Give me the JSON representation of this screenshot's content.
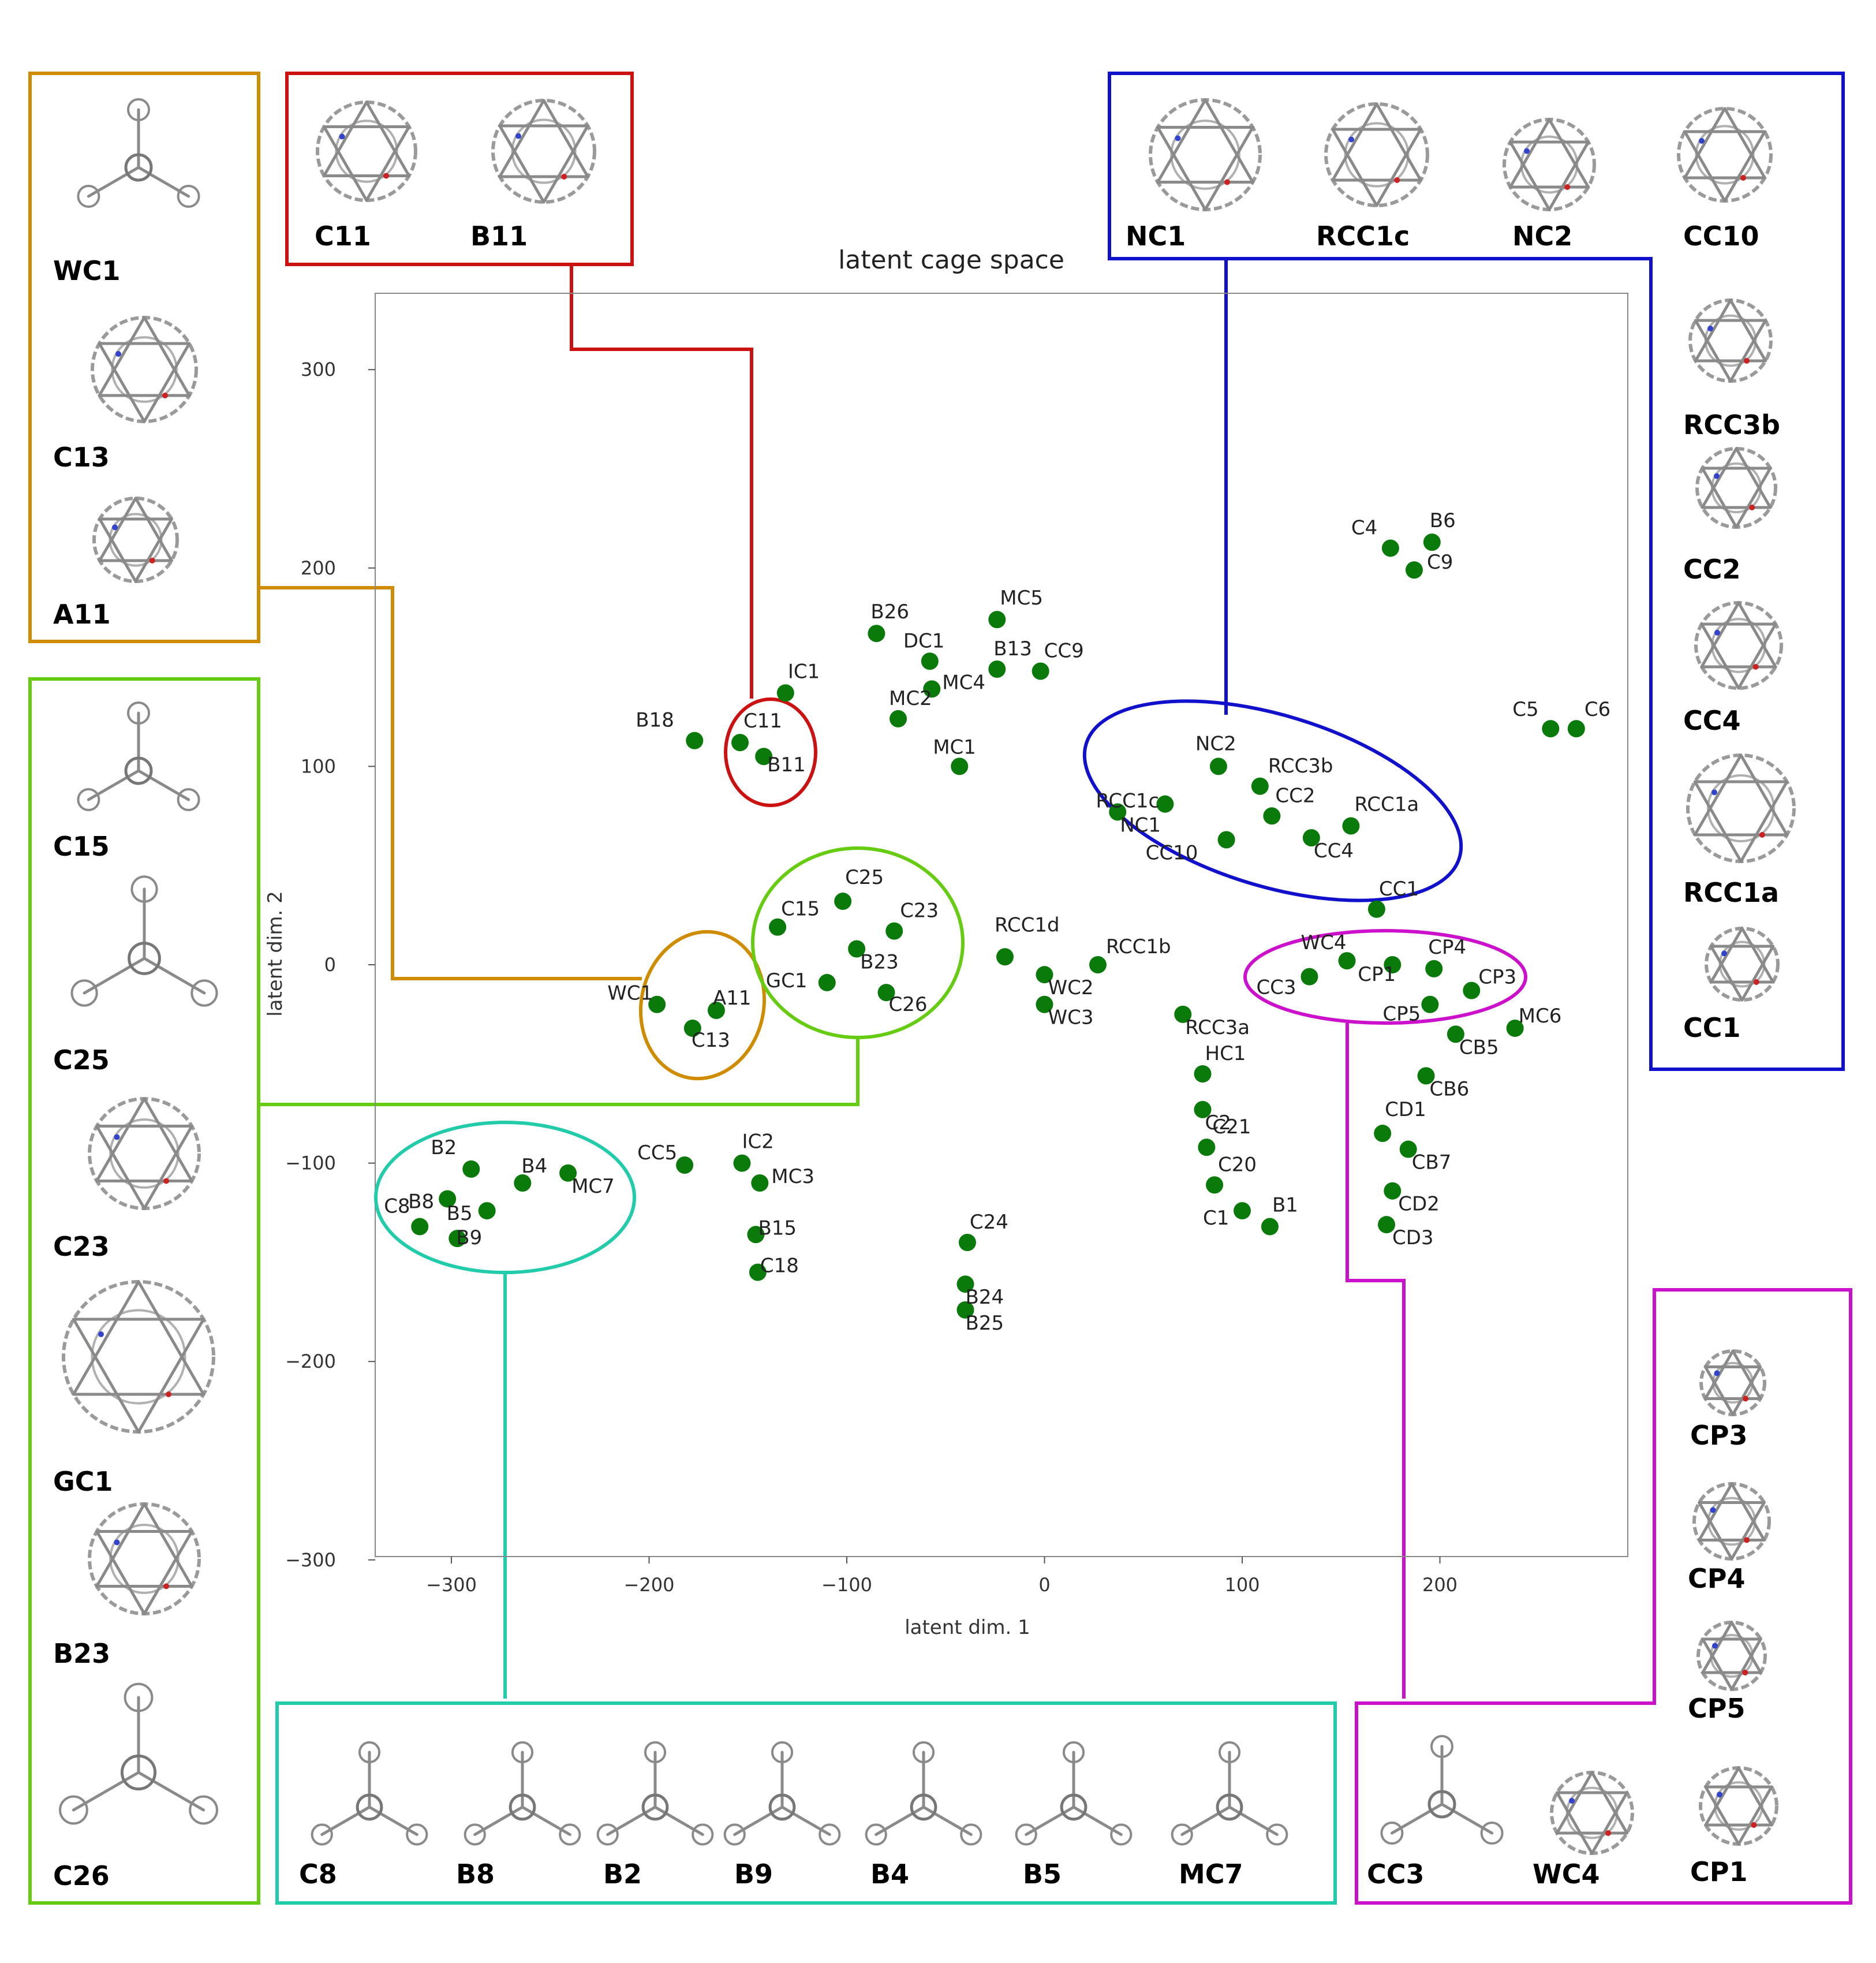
{
  "chart_data": {
    "type": "scatter",
    "title": "latent cage space",
    "xlabel": "latent dim. 1",
    "ylabel": "latent dim. 2",
    "xlim": [
      -342,
      292
    ],
    "ylim": [
      -300,
      337
    ],
    "xticks": [
      -300,
      -200,
      -100,
      0,
      100,
      200
    ],
    "yticks": [
      -300,
      -200,
      -100,
      0,
      100,
      200,
      300
    ],
    "xtick_labels": [
      "−300",
      "−200",
      "−100",
      "0",
      "100",
      "200"
    ],
    "ytick_labels": [
      "−300",
      "−200",
      "−100",
      "0",
      "100",
      "200",
      "300"
    ],
    "marker_color": "#0a7a0a",
    "points": [
      {
        "label": "C4",
        "x": 175,
        "y": 210
      },
      {
        "label": "B6",
        "x": 196,
        "y": 213
      },
      {
        "label": "C9",
        "x": 187,
        "y": 199
      },
      {
        "label": "C5",
        "x": 256,
        "y": 119
      },
      {
        "label": "C6",
        "x": 269,
        "y": 119
      },
      {
        "label": "MC5",
        "x": -24,
        "y": 174
      },
      {
        "label": "B26",
        "x": -85,
        "y": 167
      },
      {
        "label": "DC1",
        "x": -58,
        "y": 153
      },
      {
        "label": "B13",
        "x": -24,
        "y": 149
      },
      {
        "label": "CC9",
        "x": -2,
        "y": 148
      },
      {
        "label": "MC4",
        "x": -57,
        "y": 139
      },
      {
        "label": "MC2",
        "x": -74,
        "y": 124
      },
      {
        "label": "MC1",
        "x": -43,
        "y": 100
      },
      {
        "label": "IC1",
        "x": -131,
        "y": 137
      },
      {
        "label": "B18",
        "x": -177,
        "y": 113
      },
      {
        "label": "C11",
        "x": -154,
        "y": 112
      },
      {
        "label": "B11",
        "x": -142,
        "y": 105
      },
      {
        "label": "NC2",
        "x": 88,
        "y": 100
      },
      {
        "label": "RCC3b",
        "x": 109,
        "y": 90
      },
      {
        "label": "RCC1c",
        "x": 61,
        "y": 81
      },
      {
        "label": "NC1",
        "x": 37,
        "y": 77
      },
      {
        "label": "CC2",
        "x": 115,
        "y": 75
      },
      {
        "label": "RCC1a",
        "x": 155,
        "y": 70
      },
      {
        "label": "CC10",
        "x": 92,
        "y": 63
      },
      {
        "label": "CC4",
        "x": 135,
        "y": 64
      },
      {
        "label": "CC1",
        "x": 168,
        "y": 28
      },
      {
        "label": "C25",
        "x": -102,
        "y": 32
      },
      {
        "label": "C15",
        "x": -135,
        "y": 19
      },
      {
        "label": "C23",
        "x": -76,
        "y": 17
      },
      {
        "label": "B23",
        "x": -95,
        "y": 8
      },
      {
        "label": "GC1",
        "x": -110,
        "y": -9
      },
      {
        "label": "C26",
        "x": -80,
        "y": -14
      },
      {
        "label": "WC1",
        "x": -196,
        "y": -20
      },
      {
        "label": "A11",
        "x": -166,
        "y": -23
      },
      {
        "label": "C13",
        "x": -178,
        "y": -32
      },
      {
        "label": "RCC1d",
        "x": -20,
        "y": 4
      },
      {
        "label": "RCC1b",
        "x": 27,
        "y": 0
      },
      {
        "label": "WC2",
        "x": 0,
        "y": -5
      },
      {
        "label": "WC3",
        "x": 0,
        "y": -20
      },
      {
        "label": "WC4",
        "x": 153,
        "y": 2
      },
      {
        "label": "CP4",
        "x": 197,
        "y": -2
      },
      {
        "label": "CC3",
        "x": 134,
        "y": -6
      },
      {
        "label": "CP1",
        "x": 176,
        "y": 0
      },
      {
        "label": "CP3",
        "x": 216,
        "y": -13
      },
      {
        "label": "CP5",
        "x": 195,
        "y": -20
      },
      {
        "label": "MC6",
        "x": 238,
        "y": -32
      },
      {
        "label": "CB5",
        "x": 208,
        "y": -35
      },
      {
        "label": "RCC3a",
        "x": 70,
        "y": -25
      },
      {
        "label": "HC1",
        "x": 80,
        "y": -55
      },
      {
        "label": "C2",
        "x": 80,
        "y": -73
      },
      {
        "label": "C21",
        "x": 82,
        "y": -92
      },
      {
        "label": "C20",
        "x": 86,
        "y": -111
      },
      {
        "label": "C1",
        "x": 100,
        "y": -124
      },
      {
        "label": "B1",
        "x": 114,
        "y": -132
      },
      {
        "label": "CB6",
        "x": 193,
        "y": -56
      },
      {
        "label": "CD1",
        "x": 171,
        "y": -85
      },
      {
        "label": "CB7",
        "x": 184,
        "y": -93
      },
      {
        "label": "CD2",
        "x": 176,
        "y": -114
      },
      {
        "label": "CD3",
        "x": 173,
        "y": -131
      },
      {
        "label": "CC5",
        "x": -182,
        "y": -101
      },
      {
        "label": "IC2",
        "x": -153,
        "y": -100
      },
      {
        "label": "MC3",
        "x": -144,
        "y": -110
      },
      {
        "label": "B15",
        "x": -146,
        "y": -136
      },
      {
        "label": "C18",
        "x": -145,
        "y": -155
      },
      {
        "label": "C24",
        "x": -39,
        "y": -140
      },
      {
        "label": "B24",
        "x": -40,
        "y": -161
      },
      {
        "label": "B25",
        "x": -40,
        "y": -174
      },
      {
        "label": "B2",
        "x": -290,
        "y": -103
      },
      {
        "label": "B4",
        "x": -264,
        "y": -110
      },
      {
        "label": "MC7",
        "x": -241,
        "y": -105
      },
      {
        "label": "B8",
        "x": -302,
        "y": -118
      },
      {
        "label": "B5",
        "x": -282,
        "y": -124
      },
      {
        "label": "C8",
        "x": -316,
        "y": -132
      },
      {
        "label": "B9",
        "x": -297,
        "y": -138
      }
    ],
    "annotation_groups": [
      {
        "color": "#cc1111",
        "members": [
          "C11",
          "B11"
        ]
      },
      {
        "color": "#1111cc",
        "members": [
          "NC1",
          "RCC1c",
          "NC2",
          "CC10",
          "RCC3b",
          "CC2",
          "CC4",
          "RCC1a",
          "CC1"
        ]
      },
      {
        "color": "#d08c00",
        "members": [
          "WC1",
          "C13",
          "A11"
        ]
      },
      {
        "color": "#66cc11",
        "members": [
          "C15",
          "C25",
          "C23",
          "GC1",
          "B23",
          "C26"
        ]
      },
      {
        "color": "#22ccaa",
        "members": [
          "C8",
          "B8",
          "B2",
          "B9",
          "B4",
          "B5",
          "MC7"
        ]
      },
      {
        "color": "#cc11cc",
        "members": [
          "CP3",
          "CP4",
          "CP5",
          "CC3",
          "WC4",
          "CP1"
        ]
      }
    ]
  },
  "panels": {
    "red": {
      "color": "#cc1111",
      "labels": [
        "C11",
        "B11"
      ]
    },
    "blue": {
      "color": "#1111cc",
      "labels": [
        "NC1",
        "RCC1c",
        "NC2",
        "CC10",
        "RCC3b",
        "CC2",
        "CC4",
        "RCC1a",
        "CC1"
      ]
    },
    "orange": {
      "color": "#d08c00",
      "labels": [
        "WC1",
        "C13",
        "A11"
      ]
    },
    "green": {
      "color": "#66cc11",
      "labels": [
        "C15",
        "C25",
        "C23",
        "GC1",
        "B23",
        "C26"
      ]
    },
    "teal": {
      "color": "#22ccaa",
      "labels": [
        "C8",
        "B8",
        "B2",
        "B9",
        "B4",
        "B5",
        "MC7"
      ]
    },
    "magenta": {
      "color": "#cc11cc",
      "labels": [
        "CP3",
        "CP4",
        "CP5",
        "CC3",
        "WC4",
        "CP1"
      ]
    }
  }
}
